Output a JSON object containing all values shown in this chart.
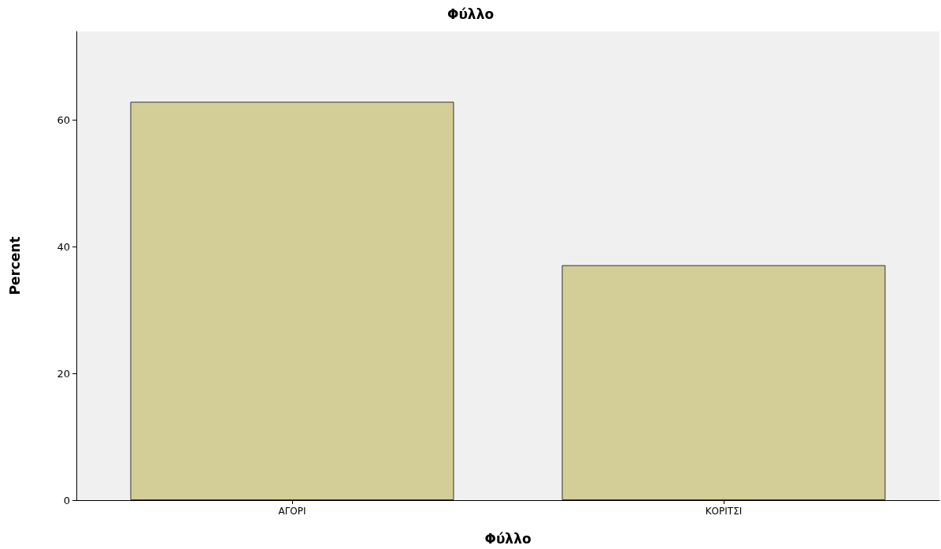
{
  "chart_data": {
    "type": "bar",
    "title": "Φύλλο",
    "xlabel": "Φύλλο",
    "ylabel": "Percent",
    "categories": [
      "ΑΓΟΡΙ",
      "ΚΟΡΙΤΣΙ"
    ],
    "values": [
      62.9,
      37.1
    ],
    "color": "#d3ce97",
    "ylim": [
      0,
      74
    ],
    "yticks": [
      0,
      20,
      40,
      60
    ],
    "grid": false
  }
}
